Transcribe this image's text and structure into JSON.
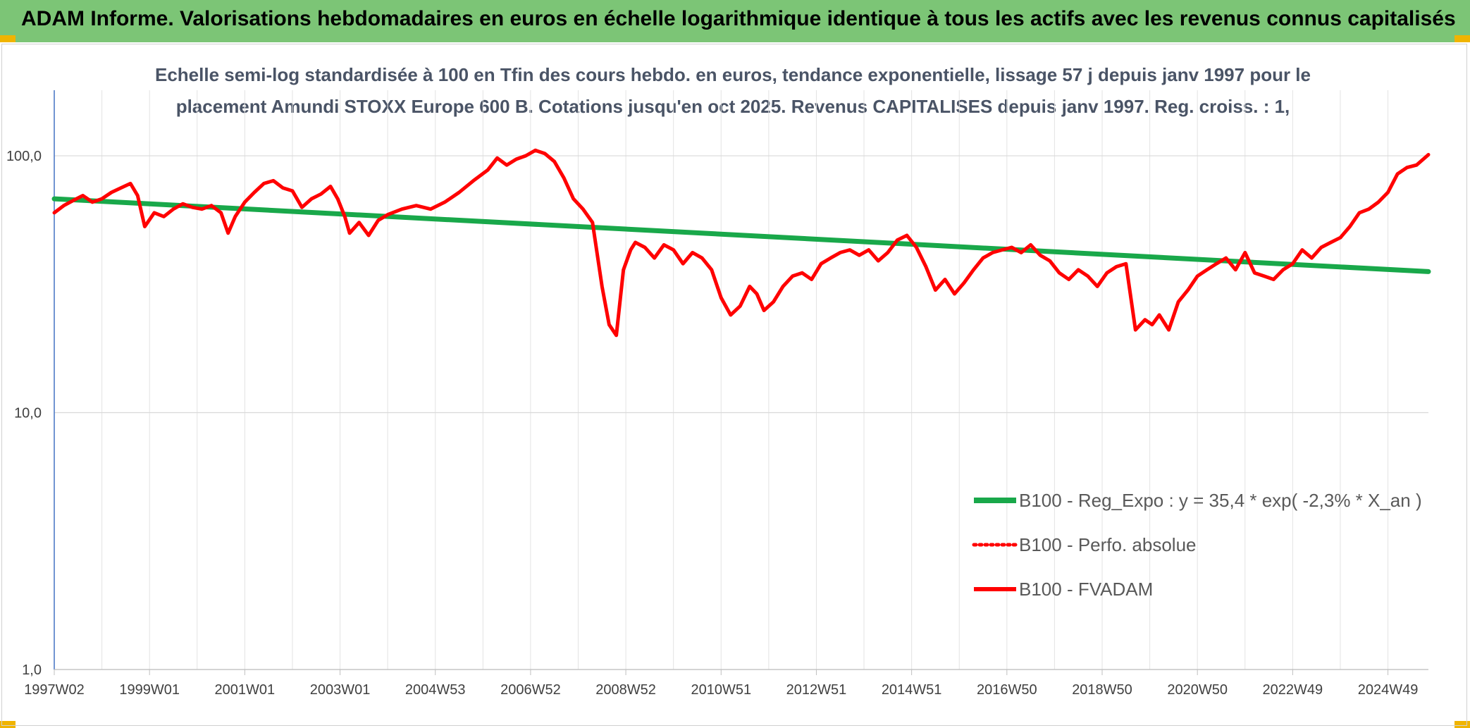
{
  "header": {
    "title": "ADAM Informe. Valorisations hebdomadaires en euros en échelle logarithmique identique à tous les actifs avec les revenus connus capitalisés"
  },
  "colors": {
    "header_bg": "#7cc576",
    "trend": "#19a84a",
    "series": "#ff0000"
  },
  "chart_data": {
    "type": "line",
    "subtitle_line1": "Echelle semi-log standardisée à 100 en Tfin des cours hebdo. en euros, tendance exponentielle, lissage 57 j depuis janv 1997 pour le",
    "subtitle_line2": "placement Amundi STOXX Europe 600 B. Cotations jusqu'en oct 2025. Revenus CAPITALISES depuis janv 1997. Reg. croiss. : 1,",
    "y_scale": "log",
    "ylim": [
      1,
      180
    ],
    "xlim": [
      1997.0,
      2025.85
    ],
    "y_ticks": [
      {
        "value": 1,
        "label": "1,0"
      },
      {
        "value": 10,
        "label": "10,0"
      },
      {
        "value": 100,
        "label": "100,0"
      }
    ],
    "x_ticks": [
      {
        "value": 1997.0,
        "label": "1997W02"
      },
      {
        "value": 1999.0,
        "label": "1999W01"
      },
      {
        "value": 2001.0,
        "label": "2001W01"
      },
      {
        "value": 2003.0,
        "label": "2003W01"
      },
      {
        "value": 2005.0,
        "label": "2004W53"
      },
      {
        "value": 2007.0,
        "label": "2006W52"
      },
      {
        "value": 2009.0,
        "label": "2008W52"
      },
      {
        "value": 2011.0,
        "label": "2010W51"
      },
      {
        "value": 2013.0,
        "label": "2012W51"
      },
      {
        "value": 2015.0,
        "label": "2014W51"
      },
      {
        "value": 2017.0,
        "label": "2016W50"
      },
      {
        "value": 2019.0,
        "label": "2018W50"
      },
      {
        "value": 2021.0,
        "label": "2020W50"
      },
      {
        "value": 2023.0,
        "label": "2022W49"
      },
      {
        "value": 2025.0,
        "label": "2024W49"
      }
    ],
    "grid": true,
    "legend_position": "bottom-right",
    "series": [
      {
        "name": "B100 - Reg_Expo : y = 35,4 * exp( -2,3% * X_an )",
        "style": "solid-green",
        "x": [
          1997.0,
          2025.85
        ],
        "y": [
          68,
          35.4
        ]
      },
      {
        "name": "B100 - Perfo. absolue",
        "style": "dotted-red",
        "x": [],
        "y": []
      },
      {
        "name": "B100 - FVADAM",
        "style": "solid-red",
        "x": [
          1997.0,
          1997.2,
          1997.4,
          1997.6,
          1997.8,
          1998.0,
          1998.2,
          1998.4,
          1998.6,
          1998.75,
          1998.9,
          1999.1,
          1999.3,
          1999.5,
          1999.7,
          1999.9,
          2000.1,
          2000.3,
          2000.5,
          2000.65,
          2000.8,
          2001.0,
          2001.2,
          2001.4,
          2001.6,
          2001.8,
          2002.0,
          2002.2,
          2002.4,
          2002.6,
          2002.8,
          2002.95,
          2003.1,
          2003.2,
          2003.4,
          2003.6,
          2003.8,
          2004.0,
          2004.3,
          2004.6,
          2004.9,
          2005.2,
          2005.5,
          2005.8,
          2006.1,
          2006.3,
          2006.5,
          2006.7,
          2006.9,
          2007.1,
          2007.3,
          2007.5,
          2007.7,
          2007.9,
          2008.1,
          2008.3,
          2008.5,
          2008.65,
          2008.8,
          2008.95,
          2009.1,
          2009.2,
          2009.4,
          2009.6,
          2009.8,
          2010.0,
          2010.2,
          2010.4,
          2010.6,
          2010.8,
          2011.0,
          2011.2,
          2011.4,
          2011.6,
          2011.75,
          2011.9,
          2012.1,
          2012.3,
          2012.5,
          2012.7,
          2012.9,
          2013.1,
          2013.3,
          2013.5,
          2013.7,
          2013.9,
          2014.1,
          2014.3,
          2014.5,
          2014.7,
          2014.9,
          2015.1,
          2015.3,
          2015.5,
          2015.7,
          2015.9,
          2016.1,
          2016.3,
          2016.5,
          2016.7,
          2016.9,
          2017.1,
          2017.3,
          2017.5,
          2017.7,
          2017.9,
          2018.1,
          2018.3,
          2018.5,
          2018.7,
          2018.9,
          2019.1,
          2019.3,
          2019.5,
          2019.7,
          2019.9,
          2020.05,
          2020.2,
          2020.4,
          2020.6,
          2020.8,
          2021.0,
          2021.2,
          2021.4,
          2021.6,
          2021.8,
          2022.0,
          2022.2,
          2022.4,
          2022.6,
          2022.8,
          2023.0,
          2023.2,
          2023.4,
          2023.6,
          2023.8,
          2024.0,
          2024.2,
          2024.4,
          2024.6,
          2024.8,
          2025.0,
          2025.2,
          2025.4,
          2025.6,
          2025.85
        ],
        "y": [
          60,
          64,
          67,
          70,
          66,
          68,
          72,
          75,
          78,
          70,
          53,
          60,
          58,
          62,
          65,
          63,
          62,
          64,
          60,
          50,
          58,
          66,
          72,
          78,
          80,
          75,
          73,
          63,
          68,
          71,
          76,
          68,
          58,
          50,
          55,
          49,
          56,
          59,
          62,
          64,
          62,
          66,
          72,
          80,
          88,
          98,
          92,
          97,
          100,
          105,
          102,
          95,
          82,
          68,
          62,
          55,
          31,
          22,
          20,
          36,
          43,
          46,
          44,
          40,
          45,
          43,
          38,
          42,
          40,
          36,
          28,
          24,
          26,
          31,
          29,
          25,
          27,
          31,
          34,
          35,
          33,
          38,
          40,
          42,
          43,
          41,
          43,
          39,
          42,
          47,
          49,
          44,
          37,
          30,
          33,
          29,
          32,
          36,
          40,
          42,
          43,
          44,
          42,
          45,
          41,
          39,
          35,
          33,
          36,
          34,
          31,
          35,
          37,
          38,
          21,
          23,
          22,
          24,
          21,
          27,
          30,
          34,
          36,
          38,
          40,
          36,
          42,
          35,
          34,
          33,
          36,
          38,
          43,
          40,
          44,
          46,
          48,
          53,
          60,
          62,
          66,
          72,
          85,
          90,
          92,
          101
        ]
      }
    ]
  }
}
